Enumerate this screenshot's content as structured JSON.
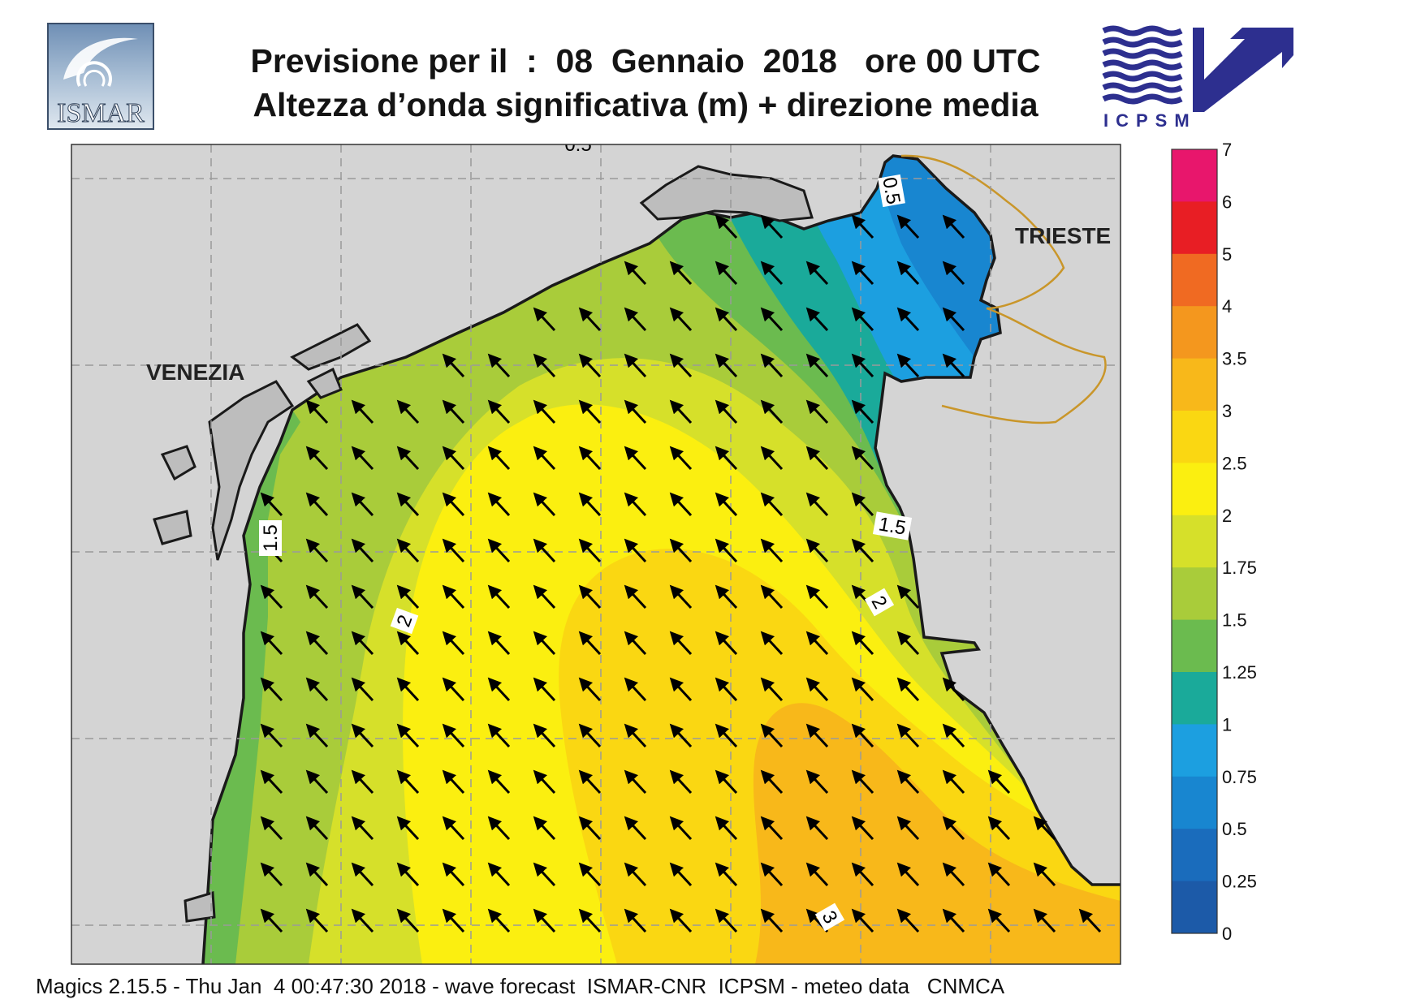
{
  "header": {
    "title_line1": "Previsione per il  :  08  Gennaio  2018   ore 00 UTC",
    "title_line2": "Altezza d’onda significativa (m) + direzione media"
  },
  "logos": {
    "left_text": "ISMAR",
    "right_text": "ICPSM"
  },
  "map": {
    "place_labels": [
      "VENEZIA",
      "TRIESTE"
    ],
    "contour_labels": [
      "0.5",
      "0.5",
      "1.5",
      "1.5",
      "2",
      "2",
      "3"
    ],
    "arrow_direction": "north-west",
    "colors": {
      "land": "#d4d4d4",
      "border": "#c9962a",
      "coast": "#1a1a1a"
    }
  },
  "legend": {
    "ticks": [
      "7",
      "6",
      "5",
      "4",
      "3.5",
      "3",
      "2.5",
      "2",
      "1.75",
      "1.5",
      "1.25",
      "1",
      "0.75",
      "0.5",
      "0.25",
      "0"
    ],
    "colors": [
      "#e8166c",
      "#e81e24",
      "#f06a22",
      "#f4971e",
      "#f8b81a",
      "#fad712",
      "#fbef10",
      "#d6e02a",
      "#a9cc3a",
      "#6bbb4f",
      "#1aaa9a",
      "#1c9fe0",
      "#1886d0",
      "#1a6cbc",
      "#1c5aa8"
    ]
  },
  "footer": {
    "text": "Magics 2.15.5 - Thu Jan  4 00:47:30 2018 - wave forecast  ISMAR-CNR  ICPSM - meteo data   CNMCA"
  }
}
